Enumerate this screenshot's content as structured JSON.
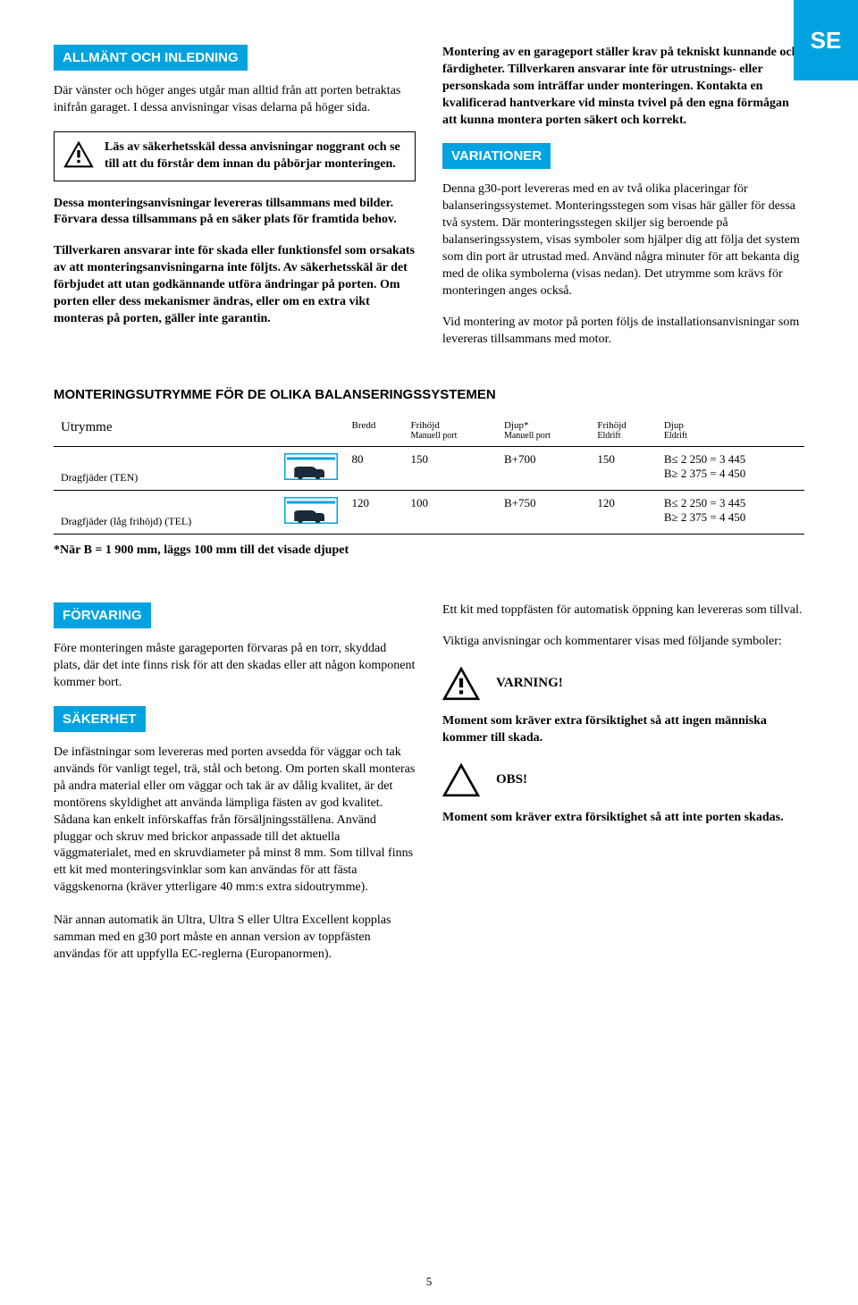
{
  "lang_badge": "SE",
  "page_number": "5",
  "left_col": {
    "heading1": "ALLMÄNT OCH INLEDNING",
    "p1": "Där vänster och höger anges utgår man alltid från att porten betraktas inifrån garaget. I dessa anvisningar visas delarna på höger sida.",
    "warning1": "Läs av säkerhetsskäl dessa anvisningar noggrant och se till att du förstår dem innan du påbörjar monteringen.",
    "p2": "Dessa monteringsanvisningar levereras tillsammans med bilder. Förvara dessa tillsammans på en säker plats för framtida behov.",
    "p3": "Tillverkaren ansvarar inte för skada eller funktionsfel som orsakats av att monteringsanvisningarna inte följts. Av säkerhetsskäl är det förbjudet att utan godkännande utföra ändringar på porten. Om porten eller dess mekanismer ändras, eller om en extra vikt monteras på porten, gäller inte garantin."
  },
  "right_col": {
    "p1": "Montering av en garageport ställer krav på tekniskt kunnande och färdigheter. Tillverkaren ansvarar inte för utrustnings- eller personskada som inträffar under monteringen. Kontakta en kvalificerad hantverkare vid minsta tvivel på den egna förmågan att kunna montera porten säkert och korrekt.",
    "heading2": "VARIATIONER",
    "p2": "Denna g30-port levereras med en av två olika placeringar för balanseringssystemet. Monteringsstegen som visas här gäller för dessa två system. Där monteringsstegen skiljer sig beroende på balanseringssystem, visas symboler som hjälper dig att följa det system som din port är utrustad med. Använd några minuter för att bekanta dig med de olika symbolerna (visas nedan). Det utrymme som krävs för monteringen anges också.",
    "p3": "Vid montering av motor på porten följs de installationsanvisningar som levereras tillsammans med motor."
  },
  "table": {
    "title": "MONTERINGSUTRYMME FÖR DE OLIKA BALANSERINGSSYSTEMEN",
    "headers": {
      "utrymme": "Utrymme",
      "bredd": "Bredd",
      "frihojd_manuell": "Frihöjd",
      "frihojd_manuell_sub": "Manuell port",
      "djup_manuell": "Djup*",
      "djup_manuell_sub": "Manuell port",
      "frihojd_eldrift": "Frihöjd",
      "frihojd_eldrift_sub": "Eldrift",
      "djup_eldrift": "Djup",
      "djup_eldrift_sub": "Eldrift"
    },
    "rows": [
      {
        "label": "Dragfjäder (TEN)",
        "bredd": "80",
        "frihojd_manuell": "150",
        "djup_manuell": "B+700",
        "frihojd_eldrift": "150",
        "djup_eldrift_l1": "B≤ 2 250 = 3 445",
        "djup_eldrift_l2": "B≥ 2 375 = 4 450"
      },
      {
        "label": "Dragfjäder (låg frihöjd) (TEL)",
        "bredd": "120",
        "frihojd_manuell": "100",
        "djup_manuell": "B+750",
        "frihojd_eldrift": "120",
        "djup_eldrift_l1": "B≤ 2 250 = 3 445",
        "djup_eldrift_l2": "B≥ 2 375 = 4 450"
      }
    ],
    "footnote": "*När B = 1 900 mm, läggs 100 mm till det visade djupet"
  },
  "bottom_left": {
    "heading_forvaring": "FÖRVARING",
    "p_forvaring": "Före monteringen måste garageporten förvaras på en torr, skyddad plats, där det inte finns risk för att den skadas eller att någon komponent kommer bort.",
    "heading_sakerhet": "SÄKERHET",
    "p_sakerhet1": "De infästningar som levereras med porten avsedda för väggar och tak används för vanligt tegel, trä, stål och betong. Om porten skall monteras på andra material eller om väggar och tak är av dålig kvalitet, är det montörens skyldighet att använda lämpliga fästen av god kvalitet. Sådana kan enkelt införskaffas från försäljningsställena. Använd pluggar och skruv med brickor anpassade till det aktuella väggmaterialet, med en skruvdiameter på minst 8 mm. Som tillval finns ett kit med monteringsvinklar som kan användas för att fästa väggskenorna (kräver ytterligare 40 mm:s extra sidoutrymme).",
    "p_sakerhet2": "När annan automatik än Ultra, Ultra S eller Ultra Excellent kopplas samman med en g30 port måste en annan version av toppfästen användas för att uppfylla EC-reglerna (Europanormen)."
  },
  "bottom_right": {
    "p1": "Ett kit med toppfästen för automatisk öppning kan levereras som tillval.",
    "p2": "Viktiga anvisningar och kommentarer visas med följande symboler:",
    "varning_label": "VARNING!",
    "p3": "Moment som kräver extra försiktighet så att ingen människa kommer till skada.",
    "obs_label": "OBS!",
    "p4": "Moment som kräver extra försiktighet så att inte porten skadas."
  }
}
